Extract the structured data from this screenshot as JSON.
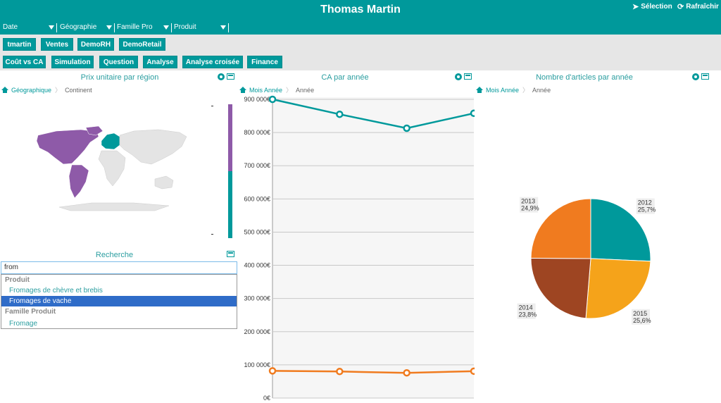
{
  "header": {
    "title": "Thomas Martin",
    "selection": "Sélection",
    "refresh": "Rafraîchir"
  },
  "filters": [
    "Date",
    "Géographie",
    "Famille Pro",
    "Produit"
  ],
  "buttons_row1": [
    "tmartin",
    "Ventes",
    "DemoRH",
    "DemoRetail"
  ],
  "buttons_row2": [
    "Coût vs CA",
    "Simulation",
    "Question",
    "Analyse",
    "Analyse croisée",
    "Finance"
  ],
  "map_panel": {
    "title": "Prix unitaire par région",
    "crumb_link": "Géographique",
    "crumb_current": "Continent",
    "legend_colors": [
      "#8e5aa8",
      "#00999b"
    ]
  },
  "search_panel": {
    "title": "Recherche",
    "query": "from",
    "groups": [
      {
        "label": "Produit",
        "options": [
          "Fromages de chèvre et brebis",
          "Fromages de vache"
        ]
      },
      {
        "label": "Famille Produit",
        "options": [
          "Fromage"
        ]
      }
    ],
    "selected": "Fromages de vache"
  },
  "line_panel": {
    "title": "CA par année",
    "crumb_link": "Mois Année",
    "crumb_current": "Année"
  },
  "pie_panel": {
    "title": "Nombre d'articles par année",
    "crumb_link": "Mois Année",
    "crumb_current": "Année"
  },
  "chart_data": [
    {
      "type": "line",
      "title": "CA par année",
      "ylim": [
        0,
        900000
      ],
      "yticks": [
        "0€",
        "100 000€",
        "200 000€",
        "300 000€",
        "400 000€",
        "500 000€",
        "600 000€",
        "700 000€",
        "800 000€",
        "900 000€"
      ],
      "series": [
        {
          "color": "#00999b",
          "values": [
            900000,
            855000,
            813000,
            858000
          ]
        },
        {
          "color": "#f07b1f",
          "values": [
            82000,
            80000,
            76000,
            81000
          ]
        }
      ]
    },
    {
      "type": "pie",
      "title": "Nombre d'articles par année",
      "slices": [
        {
          "label": "2012",
          "pct": "25,7%",
          "value": 25.7,
          "color": "#00999b"
        },
        {
          "label": "2015",
          "pct": "25,6%",
          "value": 25.6,
          "color": "#f5a31a"
        },
        {
          "label": "2014",
          "pct": "23,8%",
          "value": 23.8,
          "color": "#9e4522"
        },
        {
          "label": "2013",
          "pct": "24,9%",
          "value": 24.9,
          "color": "#f07b1f"
        }
      ]
    }
  ]
}
